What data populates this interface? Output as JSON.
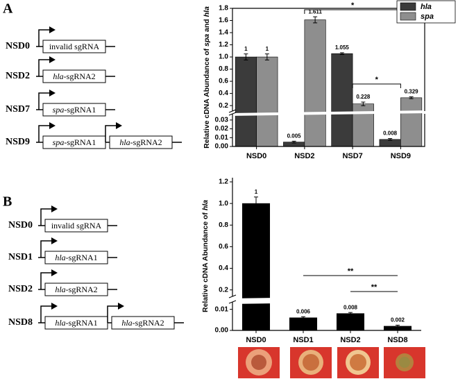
{
  "figure_panels": [
    {
      "label": "A",
      "constructs": [
        {
          "name": "NSD0",
          "parts": [
            "invalid sgRNA"
          ]
        },
        {
          "name": "NSD2",
          "parts": [
            "hla-sgRNA2"
          ]
        },
        {
          "name": "NSD7",
          "parts": [
            "spa-sgRNA1"
          ]
        },
        {
          "name": "NSD9",
          "parts": [
            "spa-sgRNA1",
            "hla-sgRNA2"
          ]
        }
      ]
    },
    {
      "label": "B",
      "constructs": [
        {
          "name": "NSD0",
          "parts": [
            "invalid sgRNA"
          ]
        },
        {
          "name": "NSD1",
          "parts": [
            "hla-sgRNA1"
          ]
        },
        {
          "name": "NSD2",
          "parts": [
            "hla-sgRNA2"
          ]
        },
        {
          "name": "NSD8",
          "parts": [
            "hla-sgRNA1",
            "hla-sgRNA2"
          ]
        }
      ]
    }
  ],
  "chart_data": [
    {
      "type": "bar",
      "ylabel": "Relative cDNA Abundance of spa and hla",
      "categories": [
        "NSD0",
        "NSD2",
        "NSD7",
        "NSD9"
      ],
      "series": [
        {
          "name": "hla",
          "color": "#3b3b3b",
          "values": [
            1,
            0.005,
            1.055,
            0.008
          ],
          "errors": [
            0.05,
            0.001,
            0.015,
            0.001
          ]
        },
        {
          "name": "spa",
          "color": "#8e8e8e",
          "values": [
            1,
            1.611,
            0.228,
            0.329
          ],
          "errors": [
            0.05,
            0.05,
            0.03,
            0.015
          ]
        }
      ],
      "ylim": [
        0,
        1.8
      ],
      "y_break": [
        0.037,
        0.11
      ],
      "yticks": [
        {
          "value": 0,
          "label": "0.00"
        },
        0.01,
        0.02,
        0.03,
        0.2,
        0.4,
        0.6,
        0.8,
        {
          "value": 1,
          "label": "1.0"
        },
        1.2,
        1.4,
        1.6,
        1.8
      ],
      "legend": "upper right",
      "frame": true,
      "annotations": [
        {
          "text": "*",
          "from": "NSD2",
          "to": "NSD9"
        },
        {
          "text": "*",
          "from": "NSD7",
          "to": "NSD9"
        }
      ]
    },
    {
      "type": "bar",
      "ylabel": "Relative cDNA Abundance of hla",
      "categories": [
        "NSD0",
        "NSD1",
        "NSD2",
        "NSD8"
      ],
      "values": [
        1,
        0.006,
        0.008,
        0.002
      ],
      "errors": [
        0.06,
        0.0005,
        0.0005,
        0.0005
      ],
      "color": "#000000",
      "ylim": [
        0,
        1.2
      ],
      "y_break": [
        0.0135,
        0.14
      ],
      "yticks": [
        {
          "value": 0,
          "label": "0.00"
        },
        0.01,
        0.2,
        0.4,
        0.6,
        0.8,
        {
          "value": 1,
          "label": "1.0"
        },
        1.2
      ],
      "frame": false,
      "annotations": [
        {
          "text": "**",
          "from": "NSD1",
          "to": "NSD8"
        },
        {
          "text": "**",
          "from": "NSD2",
          "to": "NSD8"
        }
      ]
    }
  ]
}
